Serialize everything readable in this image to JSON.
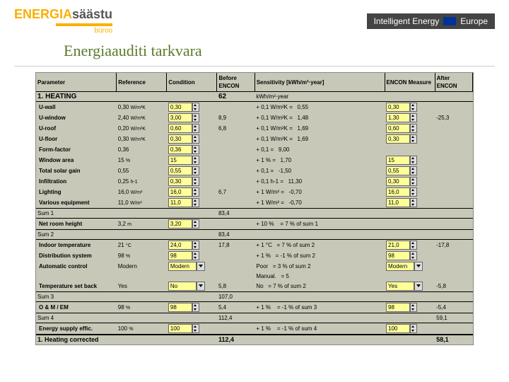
{
  "header": {
    "logo": "ENERGIAsäästu",
    "logo_sub": "büroo",
    "right": "Intelligent Energy",
    "right2": "Europe"
  },
  "title": "Energiaauditi tarkvara",
  "cols": {
    "param": "Parameter",
    "ref": "Reference",
    "cond": "Condition",
    "before": "Before ENCON",
    "sens": "Sensitivity [kWh/m²·year]",
    "encon": "ENCON Measure",
    "after": "After ENCON"
  },
  "sec1": {
    "title": "1. HEATING",
    "before": "62",
    "unit": "kWh/m²·year"
  },
  "rows": [
    {
      "p": "U-wall",
      "ref": "0,30",
      "ru": "W/m²K",
      "cond": "0,30",
      "sens": "+ 0,1 W/m²K =",
      "sv": "0,55",
      "enc": "0,30"
    },
    {
      "p": "U-window",
      "ref": "2,40",
      "ru": "W/m²K",
      "cond": "3,00",
      "bef": "8,9",
      "sens": "+ 0,1 W/m²K =",
      "sv": "1,48",
      "enc": "1,30",
      "aft": "-25,3"
    },
    {
      "p": "U-roof",
      "ref": "0,20",
      "ru": "W/m²K",
      "cond": "0,60",
      "bef": "6,8",
      "sens": "+ 0,1 W/m²K =",
      "sv": "1,69",
      "enc": "0,60"
    },
    {
      "p": "U-floor",
      "ref": "0,30",
      "ru": "W/m²K",
      "cond": "0,30",
      "sens": "+ 0,1 W/m²K =",
      "sv": "1,69",
      "enc": "0,30"
    },
    {
      "p": "Form-factor",
      "ref": "0,36",
      "cond": "0,36",
      "sens": "+ 0,1           =",
      "sv": "9,00"
    },
    {
      "p": "Window area",
      "ref": "15",
      "ru": "%",
      "cond": "15",
      "sens": "+ 1 %          =",
      "sv": "1,70",
      "enc": "15"
    },
    {
      "p": "Total solar gain",
      "ref": "0,55",
      "cond": "0,55",
      "sens": "+ 0,1           =",
      "sv": "-1,50",
      "enc": "0,55"
    },
    {
      "p": "Infiltration",
      "ref": "0,25",
      "ru": "h-1",
      "cond": "0,30",
      "sens": "+ 0,1 h-1    =",
      "sv": "11,30",
      "enc": "0,30"
    },
    {
      "p": "Lighting",
      "ref": "16,0",
      "ru": "W/m²",
      "cond": "16,0",
      "bef": "6,7",
      "sens": "+ 1 W/m²   =",
      "sv": "-0,70",
      "enc": "16,0"
    },
    {
      "p": "Various equipment",
      "ref": "11,0",
      "ru": "W/m²",
      "cond": "11,0",
      "sens": "+ 1 W/m²   =",
      "sv": "-0,70",
      "enc": "11,0"
    }
  ],
  "sum1": {
    "label": "Sum 1",
    "val": "83,4"
  },
  "netroom": {
    "p": "Net room height",
    "ref": "3,2",
    "ru": "m",
    "cond": "3,20",
    "sens": "+ 10 %",
    "sv": "= 7  % of sum 1"
  },
  "sum2": {
    "label": "Sum 2",
    "val": "83,4"
  },
  "rows2": [
    {
      "p": "Indoor temperature",
      "ref": "21",
      "ru": "°C",
      "cond": "24,0",
      "bef": "17,8",
      "sens": "+ 1 °C",
      "sv": "= 7  % of sum 2",
      "enc": "21,0",
      "aft": "-17,8"
    },
    {
      "p": "Distribution system",
      "ref": "98",
      "ru": "%",
      "cond": "98",
      "sens": "+ 1 %",
      "sv": "= -1  % of sum 2",
      "enc": "98"
    },
    {
      "p": "Automatic control",
      "ref": "Modern",
      "cond": "Modern",
      "dd": true,
      "sens": "Poor",
      "sv": "= 3  % of sum 2",
      "enc": "Modern",
      "encdd": true
    },
    {
      "p": "",
      "sens": "Manual.",
      "sv": "= 5"
    },
    {
      "p": "Temperature set back",
      "ref": "Yes",
      "cond": "No",
      "dd": true,
      "bef": "5,8",
      "sens": "No",
      "sv": "= 7  % of sum 2",
      "enc": "Yes",
      "encdd": true,
      "aft": "-5,8"
    }
  ],
  "sum3": {
    "label": "Sum 3",
    "val": "107,0"
  },
  "om": {
    "p": "O & M / EM",
    "ref": "98",
    "ru": "%",
    "cond": "98",
    "bef": "5,4",
    "sens": "+ 1 %",
    "sv": "= -1  % of sum 3",
    "enc": "98",
    "aft": "-5,4"
  },
  "sum4": {
    "label": "Sum 4",
    "val": "112,4",
    "aft": "59,1"
  },
  "supply": {
    "p": "Energy supply effic.",
    "ref": "100",
    "ru": "%",
    "cond": "100",
    "sens": "+ 1 %",
    "sv": "= -1  % of sum 4",
    "enc": "100"
  },
  "final": {
    "label": "1. Heating corrected",
    "val": "112,4",
    "aft": "58,1"
  }
}
